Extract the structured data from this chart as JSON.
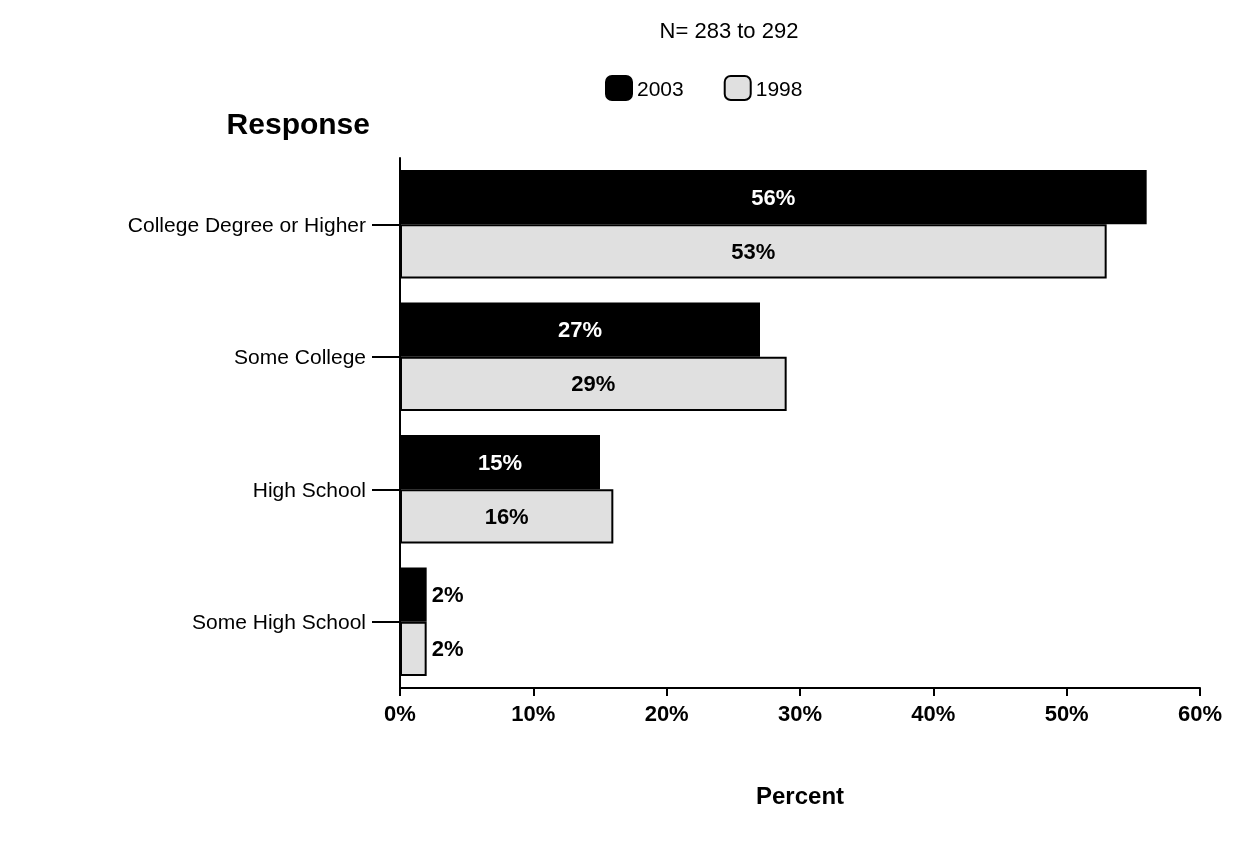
{
  "chart_data": {
    "type": "bar",
    "orientation": "horizontal",
    "title": "N= 283 to 292",
    "ylabel": "Response",
    "xlabel": "Percent",
    "categories": [
      "College Degree or Higher",
      "Some College",
      "High School",
      "Some High School"
    ],
    "series": [
      {
        "name": "2003",
        "color": "#000000",
        "values": [
          56,
          27,
          15,
          2
        ],
        "value_labels": [
          "56%",
          "27%",
          "15%",
          "2%"
        ]
      },
      {
        "name": "1998",
        "color": "#e0e0e0",
        "values": [
          53,
          29,
          16,
          2
        ],
        "value_labels": [
          "53%",
          "29%",
          "16%",
          "2%"
        ]
      }
    ],
    "xlim": [
      0,
      60
    ],
    "xticks": [
      {
        "value": 0,
        "label": "0%"
      },
      {
        "value": 10,
        "label": "10%"
      },
      {
        "value": 20,
        "label": "20%"
      },
      {
        "value": 30,
        "label": "30%"
      },
      {
        "value": 40,
        "label": "40%"
      },
      {
        "value": 50,
        "label": "50%"
      },
      {
        "value": 60,
        "label": "60%"
      }
    ],
    "grid": false,
    "legend": "top"
  }
}
